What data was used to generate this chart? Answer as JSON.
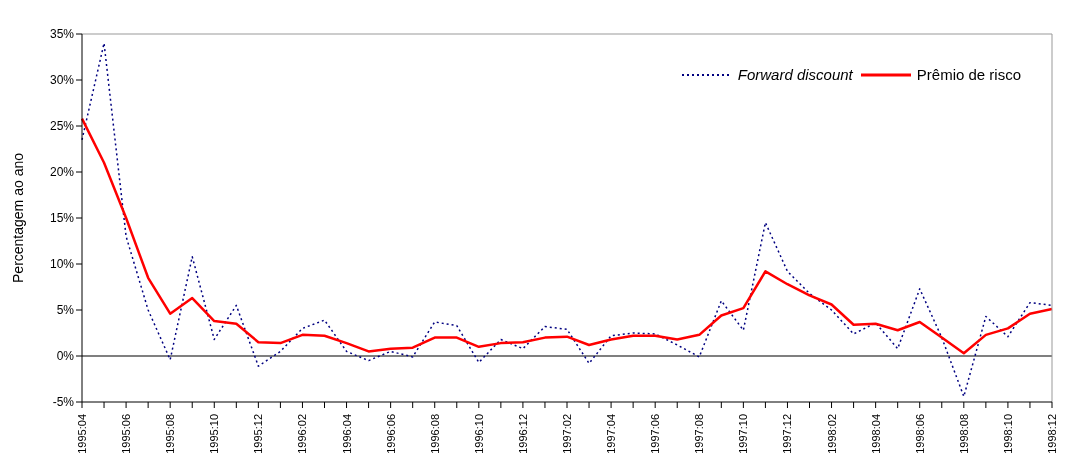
{
  "chart_data": {
    "type": "line",
    "ylabel": "Percentagem ao ano",
    "categories": [
      "1995:04",
      null,
      "1995:06",
      null,
      "1995:08",
      null,
      "1995:10",
      null,
      "1995:12",
      null,
      "1996:02",
      null,
      "1996:04",
      null,
      "1996:06",
      null,
      "1996:08",
      null,
      "1996:10",
      null,
      "1996:12",
      null,
      "1997:02",
      null,
      "1997:04",
      null,
      "1997:06",
      null,
      "1997:08",
      null,
      "1997:10",
      null,
      "1997:12",
      null,
      "1998:02",
      null,
      "1998:04",
      null,
      "1998:06",
      null,
      "1998:08",
      null,
      "1998:10",
      null,
      "1998:12"
    ],
    "series": [
      {
        "name": "Forward discount",
        "color": "#000080",
        "line_style": "dotted",
        "values": [
          23.5,
          34,
          13,
          5,
          -0.4,
          10.8,
          1.8,
          5.5,
          -1.1,
          0.5,
          3.0,
          3.9,
          0.5,
          -0.5,
          0.5,
          -0.1,
          3.7,
          3.3,
          -0.7,
          1.8,
          0.8,
          3.2,
          2.9,
          -0.8,
          2.2,
          2.5,
          2.4,
          1.2,
          -0.1,
          6.0,
          2.8,
          14.5,
          9.2,
          6.8,
          5.0,
          2.4,
          3.6,
          0.8,
          7.3,
          2.0,
          -4.4,
          4.3,
          2.1,
          5.8,
          5.5
        ]
      },
      {
        "name": "Prêmio de risco",
        "color": "#ff0000",
        "line_style": "solid",
        "values": [
          25.8,
          21,
          15,
          8.5,
          4.6,
          6.3,
          3.8,
          3.5,
          1.5,
          1.4,
          2.3,
          2.2,
          1.4,
          0.5,
          0.8,
          0.9,
          2.0,
          2.0,
          1.0,
          1.4,
          1.5,
          2.0,
          2.1,
          1.2,
          1.8,
          2.2,
          2.2,
          1.8,
          2.3,
          4.4,
          5.2,
          9.2,
          7.8,
          6.6,
          5.6,
          3.4,
          3.5,
          2.8,
          3.7,
          2.0,
          0.3,
          2.3,
          3.0,
          4.6,
          5.1
        ]
      }
    ],
    "ylim": [
      -5,
      35
    ],
    "yticks": [
      {
        "value": -5,
        "label": "-5%"
      },
      {
        "value": 0,
        "label": "0%"
      },
      {
        "value": 5,
        "label": "5%"
      },
      {
        "value": 10,
        "label": "10%"
      },
      {
        "value": 15,
        "label": "15%"
      },
      {
        "value": 20,
        "label": "20%"
      },
      {
        "value": 25,
        "label": "25%"
      },
      {
        "value": 30,
        "label": "30%"
      },
      {
        "value": 35,
        "label": "35%"
      }
    ],
    "ref_lines": [
      {
        "axis": "y",
        "value": 0,
        "color": "#000000"
      }
    ],
    "legend": "top right",
    "marker": "none"
  }
}
